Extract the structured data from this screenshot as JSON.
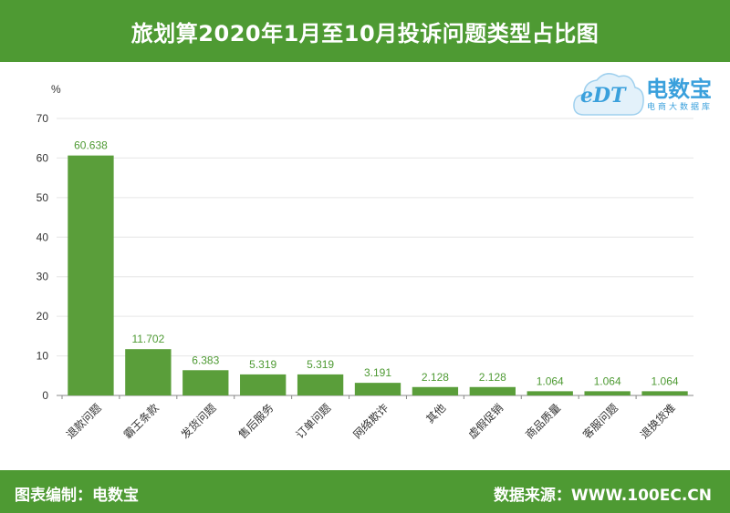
{
  "header": {
    "title": "旅划算2020年1月至10月投诉问题类型占比图"
  },
  "footer": {
    "left_text": "图表编制：电数宝",
    "right_text": "数据来源：WWW.100EC.CN"
  },
  "logo": {
    "name": "电数宝",
    "subtitle": "电商大数据库",
    "mark_text": "eDT",
    "icon": "cloud-logo-icon"
  },
  "colors": {
    "brand_green": "#4e9a33",
    "bar_green": "#5a9e3a",
    "label_green": "#4e9a33",
    "logo_blue": "#3aa0dc"
  },
  "chart_data": {
    "type": "bar",
    "title": "旅划算2020年1月至10月投诉问题类型占比图",
    "ylabel": "%",
    "xlabel": "",
    "ylim": [
      0,
      70
    ],
    "yticks": [
      0,
      10,
      20,
      30,
      40,
      50,
      60,
      70
    ],
    "grid": true,
    "categories": [
      "退款问题",
      "霸王条款",
      "发货问题",
      "售后服务",
      "订单问题",
      "网络欺诈",
      "其他",
      "虚假促销",
      "商品质量",
      "客服问题",
      "退换货难"
    ],
    "values": [
      60.638,
      11.702,
      6.383,
      5.319,
      5.319,
      3.191,
      2.128,
      2.128,
      1.064,
      1.064,
      1.064
    ],
    "value_labels": [
      "60.638",
      "11.702",
      "6.383",
      "5.319",
      "5.319",
      "3.191",
      "2.128",
      "2.128",
      "1.064",
      "1.064",
      "1.064"
    ]
  }
}
